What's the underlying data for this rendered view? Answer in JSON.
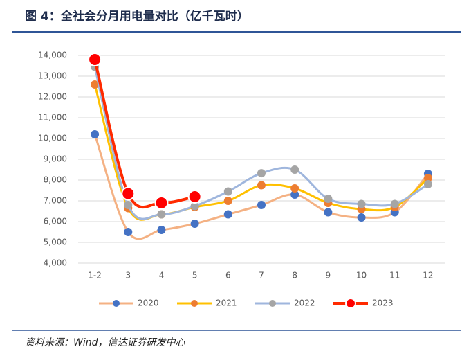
{
  "chart_data": {
    "type": "line",
    "title": "图 4：全社会分月用电量对比（亿千瓦时）",
    "source": "资料来源：Wind，信达证券研发中心",
    "categories": [
      "1-2",
      "3",
      "4",
      "5",
      "6",
      "7",
      "8",
      "9",
      "10",
      "11",
      "12"
    ],
    "series": [
      {
        "name": "2020",
        "color": "#f4b183",
        "marker_color": "#4472c4",
        "values": [
          10200,
          5500,
          5600,
          5900,
          6350,
          6800,
          7300,
          6450,
          6200,
          6450,
          8300
        ]
      },
      {
        "name": "2021",
        "color": "#ffc000",
        "marker_color": "#ed7d31",
        "values": [
          12600,
          6650,
          6350,
          6700,
          7000,
          7750,
          7600,
          6900,
          6600,
          6700,
          8100
        ]
      },
      {
        "name": "2022",
        "color": "#9fb6dd",
        "marker_color": "#a5a5a5",
        "values": [
          13450,
          6800,
          6350,
          6750,
          7450,
          8330,
          8500,
          7100,
          6850,
          6850,
          7800
        ]
      },
      {
        "name": "2023",
        "color": "#ff2a00",
        "marker_color": "#ff0000",
        "values": [
          13800,
          7350,
          6900,
          7200,
          null,
          null,
          null,
          null,
          null,
          null,
          null
        ]
      }
    ],
    "ylim": [
      4000,
      14000
    ],
    "yticks": [
      {
        "value": 4000,
        "label": "4,000"
      },
      {
        "value": 5000,
        "label": "5,000"
      },
      {
        "value": 6000,
        "label": "6,000"
      },
      {
        "value": 7000,
        "label": "7,000"
      },
      {
        "value": 8000,
        "label": "8,000"
      },
      {
        "value": 9000,
        "label": "9,000"
      },
      {
        "value": 10000,
        "label": "10,000"
      },
      {
        "value": 11000,
        "label": "11,000"
      },
      {
        "value": 12000,
        "label": "12,000"
      },
      {
        "value": 13000,
        "label": "13,000"
      },
      {
        "value": 14000,
        "label": "14,000"
      }
    ],
    "grid": true,
    "legend": "bottom"
  }
}
